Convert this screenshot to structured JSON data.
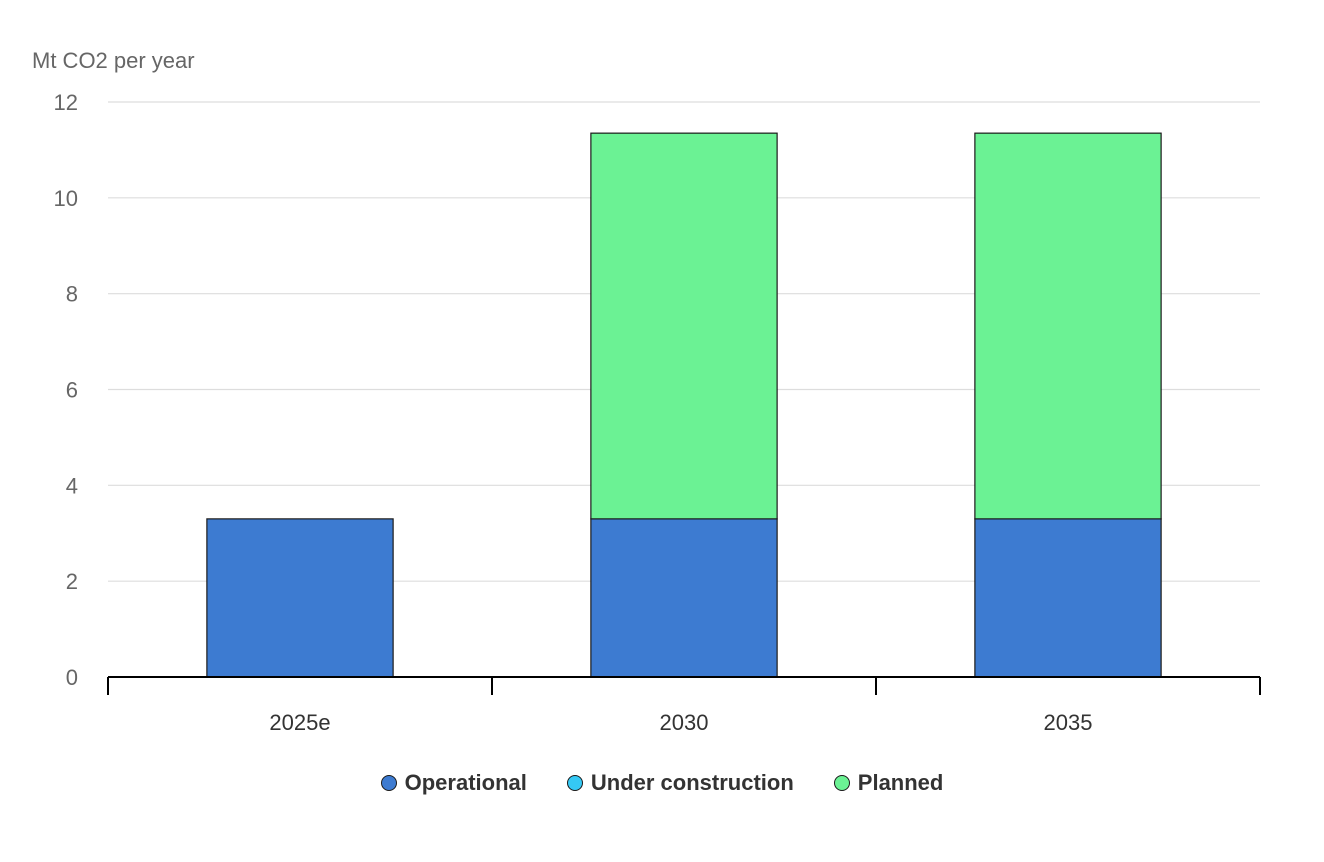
{
  "chart_data": {
    "type": "bar",
    "stacked": true,
    "ylabel": "Mt CO2 per year",
    "ylim": [
      0,
      12
    ],
    "yticks": [
      0,
      2,
      4,
      6,
      8,
      10,
      12
    ],
    "grid": true,
    "legend_position": "bottom",
    "categories": [
      "2025e",
      "2030",
      "2035"
    ],
    "series": [
      {
        "name": "Operational",
        "color": "#3d7bd1",
        "values": [
          3.3,
          3.3,
          3.3
        ]
      },
      {
        "name": "Under construction",
        "color": "#35c9f5",
        "values": [
          0,
          0,
          0
        ]
      },
      {
        "name": "Planned",
        "color": "#6bf294",
        "values": [
          0,
          8.05,
          8.05
        ]
      }
    ]
  }
}
